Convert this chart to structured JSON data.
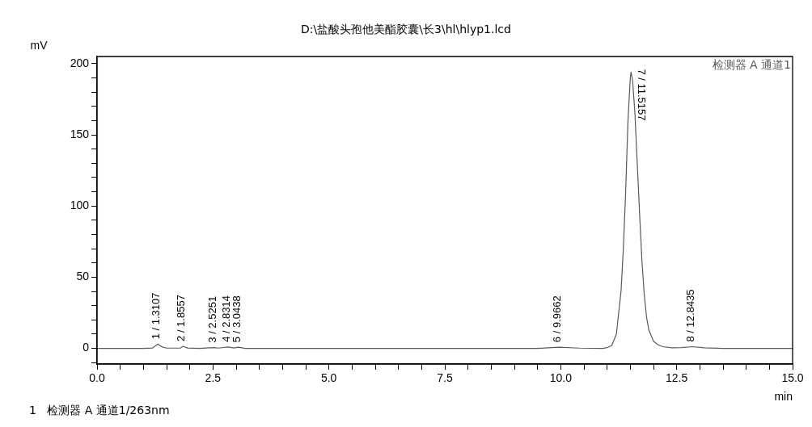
{
  "chart_data": {
    "type": "line",
    "title": "D:\\盐酸头孢他美酯胶囊\\长3\\hl\\hlyp1.lcd",
    "xlabel": "min",
    "ylabel": "mV",
    "xlim": [
      0,
      15
    ],
    "ylim": [
      -11,
      205
    ],
    "xticks": [
      {
        "value": 0,
        "label": "0.0"
      },
      {
        "value": 0.5,
        "label": null
      },
      {
        "value": 1,
        "label": null
      },
      {
        "value": 1.5,
        "label": null
      },
      {
        "value": 2,
        "label": null
      },
      {
        "value": 2.5,
        "label": "2.5"
      },
      {
        "value": 3,
        "label": null
      },
      {
        "value": 3.5,
        "label": null
      },
      {
        "value": 4,
        "label": null
      },
      {
        "value": 4.5,
        "label": null
      },
      {
        "value": 5,
        "label": "5.0"
      },
      {
        "value": 5.5,
        "label": null
      },
      {
        "value": 6,
        "label": null
      },
      {
        "value": 6.5,
        "label": null
      },
      {
        "value": 7,
        "label": null
      },
      {
        "value": 7.5,
        "label": "7.5"
      },
      {
        "value": 8,
        "label": null
      },
      {
        "value": 8.5,
        "label": null
      },
      {
        "value": 9,
        "label": null
      },
      {
        "value": 9.5,
        "label": null
      },
      {
        "value": 10,
        "label": "10.0"
      },
      {
        "value": 10.5,
        "label": null
      },
      {
        "value": 11,
        "label": null
      },
      {
        "value": 11.5,
        "label": null
      },
      {
        "value": 12,
        "label": null
      },
      {
        "value": 12.5,
        "label": "12.5"
      },
      {
        "value": 13,
        "label": null
      },
      {
        "value": 13.5,
        "label": null
      },
      {
        "value": 14,
        "label": null
      },
      {
        "value": 14.5,
        "label": null
      },
      {
        "value": 15,
        "label": "15.0"
      }
    ],
    "yticks": [
      {
        "value": -10,
        "label": null
      },
      0,
      {
        "value": 10,
        "label": null
      },
      {
        "value": 20,
        "label": null
      },
      {
        "value": 30,
        "label": null
      },
      {
        "value": 40,
        "label": null
      },
      50,
      {
        "value": 60,
        "label": null
      },
      {
        "value": 70,
        "label": null
      },
      {
        "value": 80,
        "label": null
      },
      {
        "value": 90,
        "label": null
      },
      100,
      {
        "value": 110,
        "label": null
      },
      {
        "value": 120,
        "label": null
      },
      {
        "value": 130,
        "label": null
      },
      {
        "value": 140,
        "label": null
      },
      150,
      {
        "value": 160,
        "label": null
      },
      {
        "value": 170,
        "label": null
      },
      {
        "value": 180,
        "label": null
      },
      {
        "value": 190,
        "label": null
      },
      200
    ],
    "grid": false,
    "legend": "top right",
    "marker": "none",
    "line_style": "solid",
    "series": [
      {
        "name": "检测器 A 通道1",
        "color": "#5a5a5a",
        "x": [
          0,
          1.0,
          1.2,
          1.3107,
          1.4,
          1.5,
          1.8,
          1.8557,
          1.95,
          2.2,
          2.5251,
          2.6,
          2.8314,
          2.95,
          3.0438,
          3.2,
          4,
          6,
          9.5,
          9.9662,
          10.4,
          10.9,
          11.0,
          11.1,
          11.2,
          11.3,
          11.35,
          11.4,
          11.45,
          11.5,
          11.5157,
          11.55,
          11.6,
          11.65,
          11.7,
          11.75,
          11.8,
          11.85,
          11.9,
          12.0,
          12.1,
          12.2,
          12.4,
          12.6,
          12.8435,
          13.1,
          13.5,
          15
        ],
        "values": [
          0,
          0,
          0.3,
          3,
          1,
          0.2,
          0.3,
          1.5,
          0.3,
          0,
          0.5,
          0.2,
          1,
          0.3,
          0.8,
          0,
          0,
          0,
          0,
          0.8,
          0.2,
          0,
          0.5,
          2,
          10,
          40,
          70,
          110,
          160,
          190,
          194,
          188,
          165,
          130,
          95,
          62,
          38,
          22,
          13,
          5,
          2.5,
          1.2,
          0.4,
          0.5,
          1.2,
          0.4,
          0,
          0
        ]
      }
    ],
    "annotations": [
      {
        "text": "1 / 1.3107",
        "x": 1.3107,
        "y": 3
      },
      {
        "text": "2 / 1.8557",
        "x": 1.8557,
        "y": 1.5
      },
      {
        "text": "3 / 2.5251",
        "x": 2.5251,
        "y": 0.5
      },
      {
        "text": "4 / 2.8314",
        "x": 2.8314,
        "y": 1
      },
      {
        "text": "5 / 3.0438",
        "x": 3.0438,
        "y": 0.8
      },
      {
        "text": "6 / 9.9662",
        "x": 9.9662,
        "y": 0.8
      },
      {
        "text": "7 / 11.5157",
        "x": 11.5157,
        "y": 194
      },
      {
        "text": "8 / 12.8435",
        "x": 12.8435,
        "y": 1.2
      },
      "1   检测器 A 通道1/263nm"
    ]
  }
}
